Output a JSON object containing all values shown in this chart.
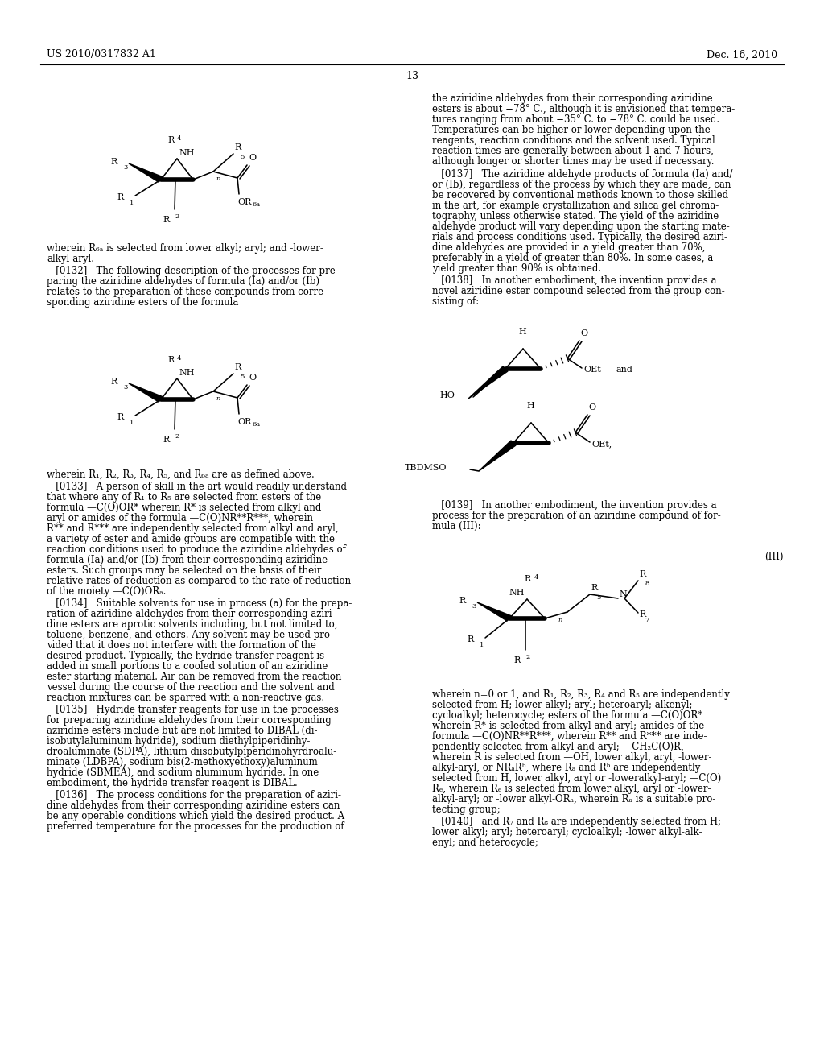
{
  "background": "#ffffff",
  "header_left": "US 2010/0317832 A1",
  "header_right": "Dec. 16, 2010",
  "page_number": "13",
  "right_col_paragraphs": [
    [
      537,
      116,
      "the aziridine aldehydes from their corresponding aziridine"
    ],
    [
      537,
      129,
      "esters is about −78° C., although it is envisioned that tempera-"
    ],
    [
      537,
      142,
      "tures ranging from about −35° C. to −78° C. could be used."
    ],
    [
      537,
      155,
      "Temperatures can be higher or lower depending upon the"
    ],
    [
      537,
      168,
      "reagents, reaction conditions and the solvent used. Typical"
    ],
    [
      537,
      181,
      "reaction times are generally between about 1 and 7 hours,"
    ],
    [
      537,
      194,
      "although longer or shorter times may be used if necessary."
    ],
    [
      537,
      210,
      "   [0137]   The aziridine aldehyde products of formula (Ia) and/"
    ],
    [
      537,
      223,
      "or (Ib), regardless of the process by which they are made, can"
    ],
    [
      537,
      236,
      "be recovered by conventional methods known to those skilled"
    ],
    [
      537,
      249,
      "in the art, for example crystallization and silica gel chroma-"
    ],
    [
      537,
      262,
      "tography, unless otherwise stated. The yield of the aziridine"
    ],
    [
      537,
      275,
      "aldehyde product will vary depending upon the starting mate-"
    ],
    [
      537,
      288,
      "rials and process conditions used. Typically, the desired aziri-"
    ],
    [
      537,
      301,
      "dine aldehydes are provided in a yield greater than 70%,"
    ],
    [
      537,
      314,
      "preferably in a yield of greater than 80%. In some cases, a"
    ],
    [
      537,
      327,
      "yield greater than 90% is obtained."
    ],
    [
      537,
      342,
      "   [0138]   In another embodiment, the invention provides a"
    ],
    [
      537,
      355,
      "novel aziridine ester compound selected from the group con-"
    ],
    [
      537,
      368,
      "sisting of:"
    ]
  ],
  "left_col_paragraphs_1": [
    [
      58,
      302,
      "wherein R₆ₐ is selected from lower alkyl; aryl; and -lower-"
    ],
    [
      58,
      315,
      "alkyl-aryl."
    ],
    [
      58,
      330,
      "   [0132]   The following description of the processes for pre-"
    ],
    [
      58,
      343,
      "paring the aziridine aldehydes of formula (Ia) and/or (Ib)"
    ],
    [
      58,
      356,
      "relates to the preparation of these compounds from corre-"
    ],
    [
      58,
      369,
      "sponding aziridine esters of the formula"
    ]
  ],
  "left_col_paragraphs_2": [
    [
      58,
      583,
      "wherein R₁, R₂, R₃, R₄, R₅, and R₆ₐ are as defined above."
    ],
    [
      58,
      598,
      "   [0133]   A person of skill in the art would readily understand"
    ],
    [
      58,
      611,
      "that where any of R₁ to R₅ are selected from esters of the"
    ],
    [
      58,
      624,
      "formula —C(O)OR* wherein R* is selected from alkyl and"
    ],
    [
      58,
      637,
      "aryl or amides of the formula —C(O)NR**R***, wherein"
    ],
    [
      58,
      650,
      "R** and R*** are independently selected from alkyl and aryl,"
    ],
    [
      58,
      663,
      "a variety of ester and amide groups are compatible with the"
    ],
    [
      58,
      676,
      "reaction conditions used to produce the aziridine aldehydes of"
    ],
    [
      58,
      689,
      "formula (Ia) and/or (Ib) from their corresponding aziridine"
    ],
    [
      58,
      702,
      "esters. Such groups may be selected on the basis of their"
    ],
    [
      58,
      715,
      "relative rates of reduction as compared to the rate of reduction"
    ],
    [
      58,
      728,
      "of the moiety —C(O)ORₐ."
    ],
    [
      58,
      743,
      "   [0134]   Suitable solvents for use in process (a) for the prepa-"
    ],
    [
      58,
      756,
      "ration of aziridine aldehydes from their corresponding aziri-"
    ],
    [
      58,
      769,
      "dine esters are aprotic solvents including, but not limited to,"
    ],
    [
      58,
      782,
      "toluene, benzene, and ethers. Any solvent may be used pro-"
    ],
    [
      58,
      795,
      "vided that it does not interfere with the formation of the"
    ],
    [
      58,
      808,
      "desired product. Typically, the hydride transfer reagent is"
    ],
    [
      58,
      821,
      "added in small portions to a cooled solution of an aziridine"
    ],
    [
      58,
      834,
      "ester starting material. Air can be removed from the reaction"
    ],
    [
      58,
      847,
      "vessel during the course of the reaction and the solvent and"
    ],
    [
      58,
      860,
      "reaction mixtures can be sparred with a non-reactive gas."
    ],
    [
      58,
      875,
      "   [0135]   Hydride transfer reagents for use in the processes"
    ],
    [
      58,
      888,
      "for preparing aziridine aldehydes from their corresponding"
    ],
    [
      58,
      901,
      "aziridine esters include but are not limited to DIBAL (di-"
    ],
    [
      58,
      914,
      "isobutylaluminum hydride), sodium diethylpiperidinhy-"
    ],
    [
      58,
      927,
      "droaluminate (SDPA), lithium diisobutylpiperidinohyrdroalu-"
    ],
    [
      58,
      940,
      "minate (LDBPA), sodium bis(2-methoxyethoxy)aluminum"
    ],
    [
      58,
      953,
      "hydride (SBMEA), and sodium aluminum hydride. In one"
    ],
    [
      58,
      966,
      "embodiment, the hydride transfer reagent is DIBAL."
    ],
    [
      58,
      981,
      "   [0136]   The process conditions for the preparation of aziri-"
    ],
    [
      58,
      994,
      "dine aldehydes from their corresponding aziridine esters can"
    ],
    [
      58,
      1007,
      "be any operable conditions which yield the desired product. A"
    ],
    [
      58,
      1020,
      "preferred temperature for the processes for the production of"
    ]
  ],
  "right_col_paragraphs_2": [
    [
      537,
      621,
      "   [0139]   In another embodiment, the invention provides a"
    ],
    [
      537,
      634,
      "process for the preparation of an aziridine compound of for-"
    ],
    [
      537,
      647,
      "mula (III):"
    ]
  ],
  "right_col_paragraphs_3": [
    [
      537,
      856,
      "wherein n=0 or 1, and R₁, R₂, R₃, R₄ and R₅ are independently"
    ],
    [
      537,
      869,
      "selected from H; lower alkyl; aryl; heteroaryl; alkenyl;"
    ],
    [
      537,
      882,
      "cycloalkyl; heterocycle; esters of the formula —C(O)OR*"
    ],
    [
      537,
      895,
      "wherein R* is selected from alkyl and aryl; amides of the"
    ],
    [
      537,
      908,
      "formula —C(O)NR**R***, wherein R** and R*** are inde-"
    ],
    [
      537,
      921,
      "pendently selected from alkyl and aryl; —CH₂C(O)R,"
    ],
    [
      537,
      934,
      "wherein R is selected from —OH, lower alkyl, aryl, -lower-"
    ],
    [
      537,
      947,
      "alkyl-aryl, or NRₐRᵇ, where Rₐ and Rᵇ are independently"
    ],
    [
      537,
      960,
      "selected from H, lower alkyl, aryl or -loweralkyl-aryl; —C(O)"
    ],
    [
      537,
      973,
      "Rₑ, wherein Rₑ is selected from lower alkyl, aryl or -lower-"
    ],
    [
      537,
      986,
      "alkyl-aryl; or -lower alkyl-ORₐ, wherein Rₐ is a suitable pro-"
    ],
    [
      537,
      999,
      "tecting group;"
    ],
    [
      537,
      1014,
      "   [0140]   and R₇ and R₈ are independently selected from H;"
    ],
    [
      537,
      1027,
      "lower alkyl; aryl; heteroaryl; cycloalkyl; -lower alkyl-alk-"
    ],
    [
      537,
      1040,
      "enyl; and heterocycle;"
    ]
  ]
}
